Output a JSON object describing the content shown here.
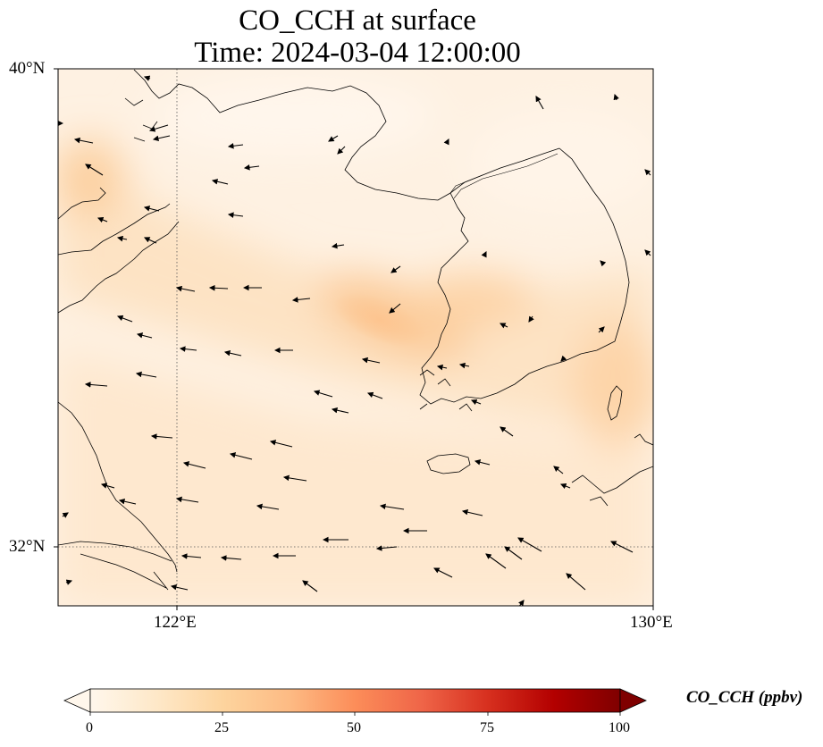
{
  "title": {
    "line1": "CO_CCH at surface",
    "line2": "Time: 2024-03-04 12:00:00"
  },
  "axes": {
    "lat_labels": [
      "40°N",
      "32°N"
    ],
    "lon_labels": [
      "122°E",
      "130°E"
    ],
    "lat_range": [
      31,
      40
    ],
    "lon_range": [
      120,
      130
    ],
    "gridlines": {
      "lat": [
        32
      ],
      "lon": [
        122
      ],
      "style": "dotted"
    }
  },
  "colorbar": {
    "label": "CO_CCH (ppbv)",
    "ticks": [
      "0",
      "25",
      "50",
      "75",
      "100"
    ],
    "range": [
      0,
      100
    ],
    "colormap": "OrRd",
    "extend": "both",
    "colors": [
      "#fff7ec",
      "#fee8c8",
      "#fdd49e",
      "#fdbb84",
      "#fc8d59",
      "#ef6548",
      "#d7301f",
      "#b30000",
      "#7f0000"
    ]
  },
  "chart_data": {
    "type": "heatmap",
    "variable": "CO_CCH",
    "unit": "ppbv",
    "field_summary": {
      "background_ppbv": 8,
      "max_ppbv": 25,
      "max_location": "west coast of Korean Peninsula near 35.5°N 124.5°E"
    },
    "wind_vectors_direction": "predominantly westward (easterly flow)"
  },
  "map_layers": [
    "coastlines",
    "plume",
    "wind-vectors",
    "gridlines"
  ]
}
